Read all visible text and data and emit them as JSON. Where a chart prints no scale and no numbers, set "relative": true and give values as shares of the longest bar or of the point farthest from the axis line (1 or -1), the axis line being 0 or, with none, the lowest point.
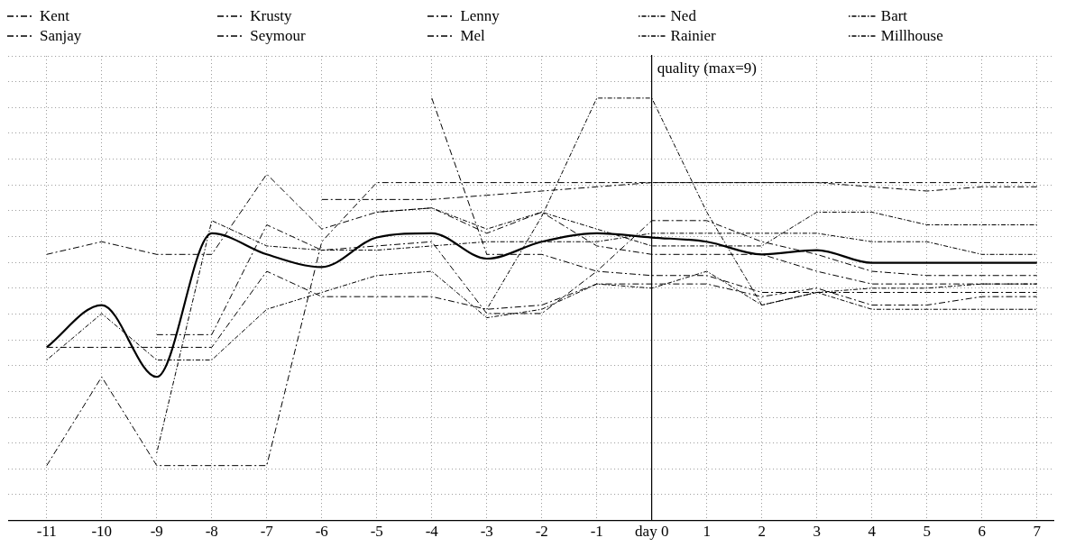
{
  "chart_data": {
    "type": "line",
    "relative": true,
    "ylabel": "quality (max=9)",
    "x": [
      -11,
      -10,
      -9,
      -8,
      -7,
      -6,
      -5,
      -4,
      -3,
      -2,
      -1,
      0,
      1,
      2,
      3,
      4,
      5,
      6,
      7
    ],
    "xlim": [
      -11.7,
      7.3
    ],
    "xticks": [
      -11,
      -10,
      -9,
      -8,
      -7,
      -6,
      -5,
      -4,
      -3,
      -2,
      -1,
      {
        "value": 0,
        "label": "day 0"
      },
      1,
      2,
      3,
      4,
      5,
      6,
      7
    ],
    "grid": true,
    "legend": "top",
    "marker": "none",
    "series": [
      {
        "name": "Kent",
        "color": "#000000",
        "line_style": "dashed",
        "values": [
          0.63,
          0.66,
          0.63,
          0.63,
          0.82,
          0.69,
          0.73,
          0.74,
          0.68,
          0.73,
          0.65,
          0.63,
          0.63,
          0.63,
          0.59,
          0.56,
          0.56,
          0.56,
          0.56
        ]
      },
      {
        "name": "Krusty",
        "color": "#000000",
        "line_style": "dashed",
        "values": [
          null,
          null,
          null,
          null,
          null,
          null,
          null,
          1,
          0.63,
          0.63,
          0.59,
          0.58,
          0.58,
          0.54,
          0.54,
          0.54,
          0.54,
          0.54,
          0.54
        ]
      },
      {
        "name": "Lenny",
        "color": "#000000",
        "line_style": "dashed",
        "values": [
          0.13,
          0.34,
          0.13,
          0.13,
          0.13,
          0.66,
          0.8,
          0.8,
          0.8,
          0.8,
          0.8,
          0.8,
          0.8,
          0.8,
          0.8,
          0.79,
          0.78,
          0.79,
          0.79
        ]
      },
      {
        "name": "Ned",
        "color": "#000000",
        "line_style": "dotted",
        "values": [
          null,
          null,
          0.16,
          0.71,
          0.65,
          0.64,
          0.64,
          0.65,
          0.66,
          0.66,
          0.66,
          0.68,
          0.68,
          0.68,
          0.68,
          0.66,
          0.66,
          0.63,
          0.63
        ]
      },
      {
        "name": "Bart",
        "color": "#000000",
        "line_style": "dotted",
        "values": [
          null,
          null,
          null,
          null,
          null,
          null,
          0.73,
          0.74,
          0.69,
          0.73,
          0.69,
          0.65,
          0.65,
          0.65,
          0.73,
          0.73,
          0.7,
          0.7,
          0.7
        ]
      },
      {
        "name": "Sanjay",
        "color": "#000000",
        "line_style": "dashed",
        "values": [
          null,
          null,
          0.44,
          0.44,
          0.7,
          0.64,
          0.65,
          0.66,
          0.49,
          0.49,
          0.59,
          0.71,
          0.71,
          0.66,
          0.63,
          0.59,
          0.58,
          0.58,
          0.58
        ]
      },
      {
        "name": "Seymour",
        "color": "#000000",
        "line_style": "dashed",
        "values": [
          null,
          null,
          null,
          null,
          null,
          0.76,
          0.76,
          0.76,
          0.77,
          0.78,
          0.79,
          0.8,
          0.8,
          0.8,
          0.8,
          0.8,
          0.8,
          0.8,
          0.8
        ]
      },
      {
        "name": "Mel",
        "color": "#000000",
        "line_style": "dashed",
        "values": [
          0.41,
          0.41,
          0.41,
          0.41,
          0.59,
          0.53,
          0.53,
          0.53,
          0.5,
          0.51,
          0.56,
          0.56,
          0.56,
          0.53,
          0.55,
          0.51,
          0.51,
          0.53,
          0.53
        ]
      },
      {
        "name": "Rainier",
        "color": "#000000",
        "line_style": "dotted",
        "values": [
          null,
          null,
          null,
          null,
          null,
          null,
          null,
          null,
          0.5,
          0.72,
          1,
          1,
          0.73,
          0.51,
          0.54,
          0.5,
          0.5,
          0.5,
          0.5
        ]
      },
      {
        "name": "Millhouse",
        "color": "#000000",
        "line_style": "dotted",
        "values": [
          0.38,
          0.49,
          0.38,
          0.38,
          0.5,
          0.54,
          0.58,
          0.59,
          0.48,
          0.5,
          0.56,
          0.55,
          0.59,
          0.51,
          0.54,
          0.55,
          0.55,
          0.56,
          0.56
        ]
      },
      {
        "color": "#000000",
        "line_style": "solid",
        "values": [
          0.41,
          0.51,
          0.34,
          0.68,
          0.63,
          0.6,
          0.67,
          0.68,
          0.62,
          0.66,
          0.68,
          0.67,
          0.66,
          0.63,
          0.64,
          0.61,
          0.61,
          0.61,
          0.61
        ]
      }
    ]
  }
}
